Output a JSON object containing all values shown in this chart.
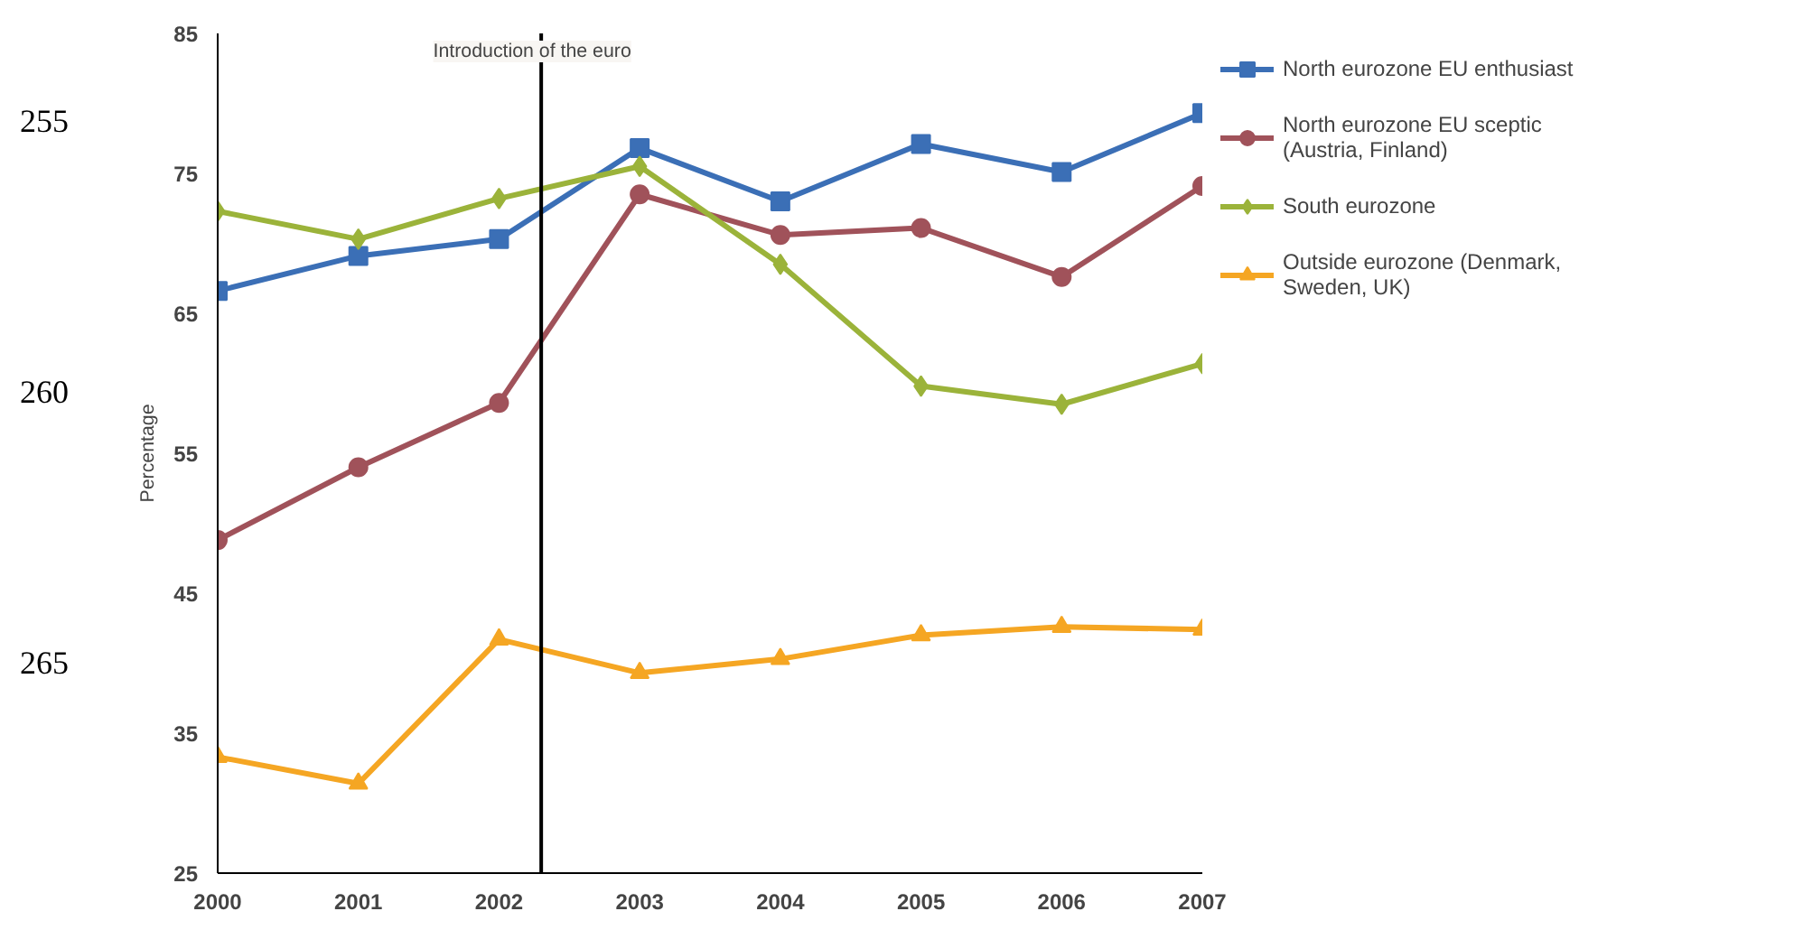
{
  "chart_data": {
    "type": "line",
    "ylabel": "Percentage",
    "x": [
      2000,
      2001,
      2002,
      2003,
      2004,
      2005,
      2006,
      2007
    ],
    "xlim": [
      2000,
      2007
    ],
    "xticks": [
      2000,
      2001,
      2002,
      2003,
      2004,
      2005,
      2006,
      2007
    ],
    "ylim": [
      25,
      85
    ],
    "yticks": [
      25,
      35,
      45,
      55,
      65,
      75,
      85
    ],
    "series": [
      {
        "name": "North eurozone EU enthusiast",
        "color": "#3b6fb6",
        "marker": "square",
        "values": [
          66.6,
          69.1,
          70.3,
          76.8,
          73.0,
          77.1,
          75.1,
          79.3
        ]
      },
      {
        "name": "North eurozone EU sceptic (Austria, Finland)",
        "color": "#a0525a",
        "marker": "circle",
        "values": [
          48.8,
          54.0,
          58.6,
          73.5,
          70.6,
          71.1,
          67.6,
          74.1
        ]
      },
      {
        "name": "South eurozone",
        "color": "#9bb33a",
        "marker": "diamond",
        "values": [
          72.3,
          70.3,
          73.2,
          75.5,
          68.5,
          59.8,
          58.5,
          61.4
        ]
      },
      {
        "name": "Outside eurozone (Denmark, Sweden, UK)",
        "color": "#f5a623",
        "marker": "triangle",
        "values": [
          33.3,
          31.4,
          41.7,
          39.3,
          40.3,
          42.0,
          42.6,
          42.4
        ]
      }
    ],
    "ref_lines": [
      {
        "axis": "x",
        "value": 2002.3,
        "label": "Introduction of the euro",
        "color": "#000000"
      }
    ],
    "annotations": [
      "255",
      "260",
      "265"
    ],
    "grid": false,
    "legend": "right",
    "line_style": "solid"
  }
}
